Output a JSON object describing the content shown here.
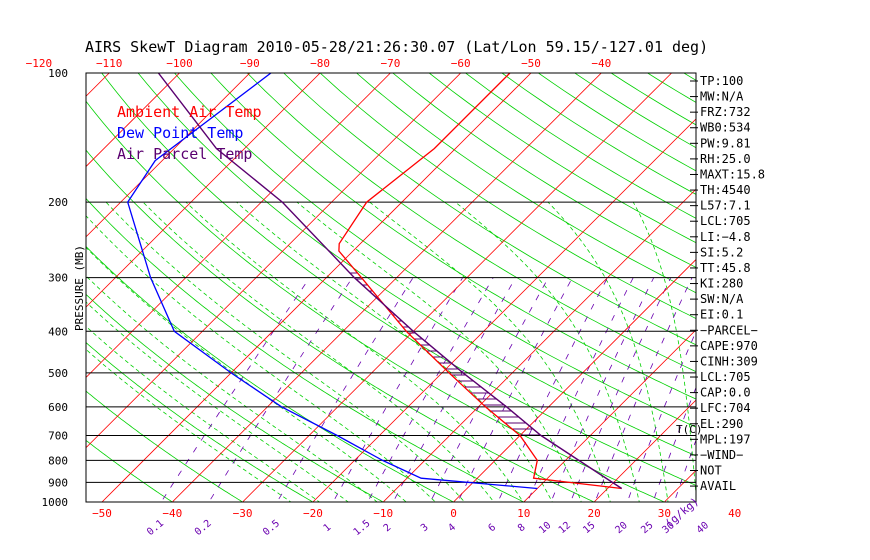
{
  "colors": {
    "frame": "#000000",
    "isotherm": "#ff0000",
    "dry_adiabat": "#00d000",
    "moist_adiabat": "#00d000",
    "mixing_ratio": "#6a00b0",
    "ambient": "#ff0000",
    "dewpoint": "#0000ff",
    "parcel": "#5a0070",
    "top_temp_labels": "#ff0000",
    "bottom_temp_labels": "#ff0000",
    "mixing_labels": "#6a00b0",
    "pressure_labels": "#000000"
  },
  "chart_data": {
    "type": "line",
    "title": "AIRS SkewT Diagram 2010-05-28/21:26:30.07 (Lat/Lon 59.15/-127.01 deg)",
    "ylabel": "PRESSURE (MB)",
    "y_scale": "log",
    "ylim": [
      1000,
      100
    ],
    "pressure_levels": [
      100,
      200,
      300,
      400,
      500,
      600,
      700,
      800,
      900,
      1000
    ],
    "pressure_labels": [
      "100",
      "200",
      "300",
      "400",
      "500",
      "600",
      "700",
      "800",
      "900",
      "1000"
    ],
    "top_temp_ticks": [
      -120,
      -110,
      -100,
      -90,
      -80,
      -70,
      -60,
      -50,
      -40
    ],
    "top_temp_labels": [
      "−120",
      "−110",
      "−100",
      "−90",
      "−80",
      "−70",
      "−60",
      "−50",
      "−40"
    ],
    "bottom_temp_ticks": [
      -50,
      -40,
      -30,
      -20,
      -10,
      0,
      10,
      20,
      30,
      40
    ],
    "bottom_temp_labels": [
      "−50",
      "−40",
      "−30",
      "−20",
      "−10",
      "0",
      "10",
      "20",
      "30",
      "40"
    ],
    "bottom_unit_label": "T(C)",
    "mixing_ratio_values": [
      0.1,
      0.2,
      0.5,
      1,
      1.5,
      2,
      3,
      4,
      6,
      8,
      10,
      12,
      15,
      20,
      25,
      30,
      40
    ],
    "mixing_ratio_labels": [
      "0.1",
      "0.2",
      "0.5",
      "1",
      "1.5",
      "2",
      "3",
      "4",
      "6",
      "8",
      "10",
      "12",
      "15",
      "20",
      "25",
      "30",
      "40"
    ],
    "mixing_unit_label": "(g/kg)",
    "legend": [
      {
        "name": "Ambient Air Temp",
        "color": "#ff0000"
      },
      {
        "name": "Dew Point Temp",
        "color": "#0000ff"
      },
      {
        "name": "Air Parcel Temp",
        "color": "#5a0070"
      }
    ],
    "series": [
      {
        "key": "ambient",
        "points": [
          {
            "p": 930,
            "t": 22
          },
          {
            "p": 880,
            "t": 8
          },
          {
            "p": 800,
            "t": 6
          },
          {
            "p": 700,
            "t": 0
          },
          {
            "p": 600,
            "t": -9
          },
          {
            "p": 500,
            "t": -19
          },
          {
            "p": 400,
            "t": -31
          },
          {
            "p": 300,
            "t": -45
          },
          {
            "p": 260,
            "t": -52
          },
          {
            "p": 250,
            "t": -53
          },
          {
            "p": 200,
            "t": -55
          },
          {
            "p": 150,
            "t": -53
          },
          {
            "p": 100,
            "t": -53
          }
        ]
      },
      {
        "key": "dewpoint",
        "points": [
          {
            "p": 930,
            "t": 10
          },
          {
            "p": 880,
            "t": -8
          },
          {
            "p": 800,
            "t": -16
          },
          {
            "p": 700,
            "t": -26
          },
          {
            "p": 600,
            "t": -38
          },
          {
            "p": 500,
            "t": -50
          },
          {
            "p": 400,
            "t": -64
          },
          {
            "p": 300,
            "t": -75
          },
          {
            "p": 200,
            "t": -89
          },
          {
            "p": 160,
            "t": -91
          },
          {
            "p": 100,
            "t": -87
          }
        ]
      },
      {
        "key": "parcel",
        "points": [
          {
            "p": 930,
            "t": 22
          },
          {
            "p": 700,
            "t": 3
          },
          {
            "p": 600,
            "t": -6
          },
          {
            "p": 500,
            "t": -17
          },
          {
            "p": 400,
            "t": -30
          },
          {
            "p": 300,
            "t": -46
          },
          {
            "p": 200,
            "t": -67
          },
          {
            "p": 150,
            "t": -84
          },
          {
            "p": 100,
            "t": -103
          }
        ]
      }
    ]
  },
  "indices": [
    "TP:100",
    "MW:N/A",
    "FRZ:732",
    "WB0:534",
    "PW:9.81",
    "RH:25.0",
    "MAXT:15.8",
    "TH:4540",
    "L57:7.1",
    "LCL:705",
    "LI:−4.8",
    "SI:5.2",
    "TT:45.8",
    "KI:280",
    "SW:N/A",
    "EI:0.1",
    "−PARCEL−",
    "CAPE:970",
    "CINH:309",
    "LCL:705",
    "CAP:0.0",
    "LFC:704",
    "EL:290",
    "MPL:197",
    "−WIND−",
    "NOT",
    "AVAIL"
  ]
}
